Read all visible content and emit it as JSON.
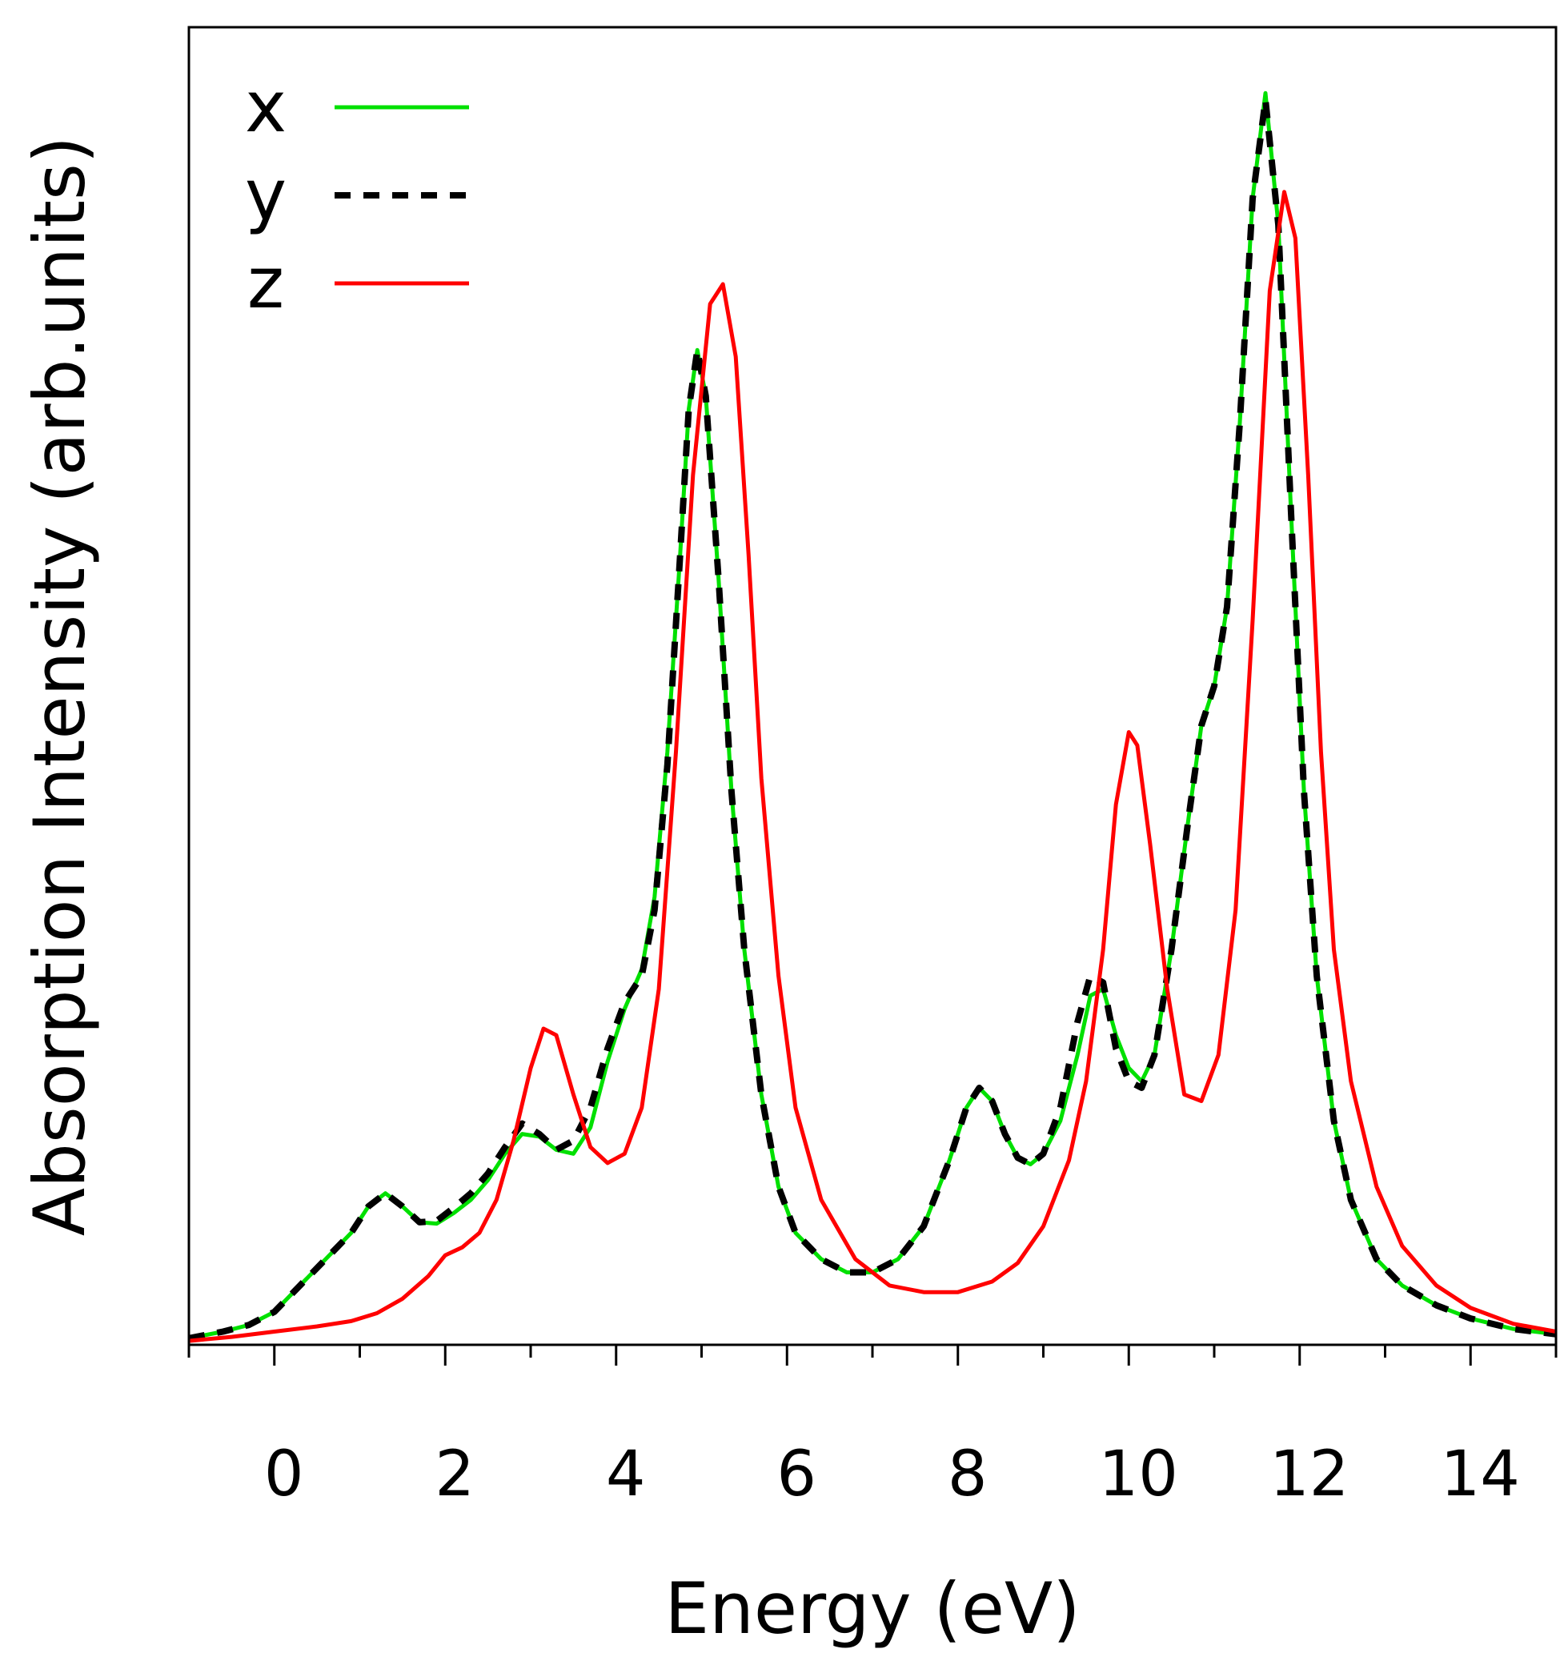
{
  "chart_data": {
    "type": "line",
    "title": "",
    "xlabel": "Energy (eV)",
    "ylabel": "Absorption Intensity (arb.units)",
    "xlim": [
      -1,
      15
    ],
    "ylim": [
      0,
      1.0
    ],
    "x_ticks": [
      0,
      2,
      4,
      6,
      8,
      10,
      12,
      14
    ],
    "x_minor_ticks": [
      -1,
      1,
      3,
      5,
      7,
      9,
      11,
      13,
      15
    ],
    "y_ticks_shown": false,
    "grid": false,
    "legend_position": "top-left",
    "series": [
      {
        "name": "x",
        "color": "#00e000",
        "style": "solid",
        "points": [
          [
            -1,
            0.005
          ],
          [
            -0.6,
            0.01
          ],
          [
            -0.3,
            0.015
          ],
          [
            0,
            0.025
          ],
          [
            0.3,
            0.045
          ],
          [
            0.6,
            0.065
          ],
          [
            0.9,
            0.085
          ],
          [
            1.1,
            0.105
          ],
          [
            1.3,
            0.115
          ],
          [
            1.5,
            0.105
          ],
          [
            1.7,
            0.093
          ],
          [
            1.9,
            0.092
          ],
          [
            2.1,
            0.1
          ],
          [
            2.3,
            0.11
          ],
          [
            2.5,
            0.125
          ],
          [
            2.7,
            0.145
          ],
          [
            2.9,
            0.16
          ],
          [
            3.1,
            0.158
          ],
          [
            3.3,
            0.148
          ],
          [
            3.5,
            0.145
          ],
          [
            3.7,
            0.165
          ],
          [
            3.9,
            0.215
          ],
          [
            4.1,
            0.255
          ],
          [
            4.3,
            0.285
          ],
          [
            4.45,
            0.34
          ],
          [
            4.6,
            0.45
          ],
          [
            4.75,
            0.6
          ],
          [
            4.85,
            0.71
          ],
          [
            4.95,
            0.755
          ],
          [
            5.05,
            0.72
          ],
          [
            5.2,
            0.58
          ],
          [
            5.35,
            0.42
          ],
          [
            5.5,
            0.3
          ],
          [
            5.7,
            0.19
          ],
          [
            5.9,
            0.12
          ],
          [
            6.1,
            0.085
          ],
          [
            6.4,
            0.065
          ],
          [
            6.7,
            0.055
          ],
          [
            7.0,
            0.055
          ],
          [
            7.3,
            0.065
          ],
          [
            7.6,
            0.09
          ],
          [
            7.9,
            0.14
          ],
          [
            8.1,
            0.18
          ],
          [
            8.25,
            0.195
          ],
          [
            8.4,
            0.185
          ],
          [
            8.55,
            0.16
          ],
          [
            8.7,
            0.142
          ],
          [
            8.85,
            0.137
          ],
          [
            9.0,
            0.145
          ],
          [
            9.2,
            0.17
          ],
          [
            9.4,
            0.22
          ],
          [
            9.55,
            0.265
          ],
          [
            9.7,
            0.27
          ],
          [
            9.85,
            0.235
          ],
          [
            10.0,
            0.21
          ],
          [
            10.15,
            0.2
          ],
          [
            10.3,
            0.22
          ],
          [
            10.5,
            0.3
          ],
          [
            10.7,
            0.4
          ],
          [
            10.85,
            0.47
          ],
          [
            11.0,
            0.5
          ],
          [
            11.15,
            0.56
          ],
          [
            11.3,
            0.7
          ],
          [
            11.45,
            0.87
          ],
          [
            11.6,
            0.95
          ],
          [
            11.75,
            0.85
          ],
          [
            11.9,
            0.63
          ],
          [
            12.05,
            0.42
          ],
          [
            12.2,
            0.28
          ],
          [
            12.4,
            0.17
          ],
          [
            12.6,
            0.11
          ],
          [
            12.9,
            0.065
          ],
          [
            13.2,
            0.045
          ],
          [
            13.6,
            0.03
          ],
          [
            14.0,
            0.02
          ],
          [
            14.5,
            0.012
          ],
          [
            15.0,
            0.008
          ]
        ]
      },
      {
        "name": "y",
        "color": "#000000",
        "style": "dashed",
        "points": [
          [
            -1,
            0.005
          ],
          [
            -0.6,
            0.01
          ],
          [
            -0.3,
            0.015
          ],
          [
            0,
            0.025
          ],
          [
            0.3,
            0.045
          ],
          [
            0.6,
            0.065
          ],
          [
            0.9,
            0.085
          ],
          [
            1.1,
            0.105
          ],
          [
            1.3,
            0.115
          ],
          [
            1.5,
            0.105
          ],
          [
            1.7,
            0.093
          ],
          [
            1.9,
            0.094
          ],
          [
            2.1,
            0.104
          ],
          [
            2.3,
            0.115
          ],
          [
            2.5,
            0.13
          ],
          [
            2.7,
            0.15
          ],
          [
            2.9,
            0.168
          ],
          [
            3.1,
            0.16
          ],
          [
            3.3,
            0.148
          ],
          [
            3.5,
            0.155
          ],
          [
            3.7,
            0.18
          ],
          [
            3.9,
            0.225
          ],
          [
            4.1,
            0.26
          ],
          [
            4.3,
            0.28
          ],
          [
            4.45,
            0.33
          ],
          [
            4.6,
            0.44
          ],
          [
            4.75,
            0.6
          ],
          [
            4.85,
            0.71
          ],
          [
            4.95,
            0.755
          ],
          [
            5.05,
            0.72
          ],
          [
            5.2,
            0.58
          ],
          [
            5.35,
            0.42
          ],
          [
            5.5,
            0.3
          ],
          [
            5.7,
            0.19
          ],
          [
            5.9,
            0.12
          ],
          [
            6.1,
            0.085
          ],
          [
            6.4,
            0.065
          ],
          [
            6.7,
            0.055
          ],
          [
            7.0,
            0.055
          ],
          [
            7.3,
            0.065
          ],
          [
            7.6,
            0.09
          ],
          [
            7.9,
            0.14
          ],
          [
            8.1,
            0.18
          ],
          [
            8.25,
            0.195
          ],
          [
            8.4,
            0.185
          ],
          [
            8.55,
            0.16
          ],
          [
            8.7,
            0.142
          ],
          [
            8.85,
            0.137
          ],
          [
            9.0,
            0.145
          ],
          [
            9.2,
            0.18
          ],
          [
            9.4,
            0.245
          ],
          [
            9.55,
            0.28
          ],
          [
            9.7,
            0.275
          ],
          [
            9.85,
            0.225
          ],
          [
            10.0,
            0.2
          ],
          [
            10.15,
            0.195
          ],
          [
            10.3,
            0.22
          ],
          [
            10.5,
            0.3
          ],
          [
            10.7,
            0.4
          ],
          [
            10.85,
            0.47
          ],
          [
            11.0,
            0.5
          ],
          [
            11.15,
            0.56
          ],
          [
            11.3,
            0.7
          ],
          [
            11.45,
            0.87
          ],
          [
            11.6,
            0.945
          ],
          [
            11.75,
            0.85
          ],
          [
            11.9,
            0.63
          ],
          [
            12.05,
            0.42
          ],
          [
            12.2,
            0.28
          ],
          [
            12.4,
            0.17
          ],
          [
            12.6,
            0.11
          ],
          [
            12.9,
            0.065
          ],
          [
            13.2,
            0.045
          ],
          [
            13.6,
            0.03
          ],
          [
            14.0,
            0.02
          ],
          [
            14.5,
            0.012
          ],
          [
            15.0,
            0.008
          ]
        ]
      },
      {
        "name": "z",
        "color": "#ff0000",
        "style": "solid",
        "points": [
          [
            -1,
            0.003
          ],
          [
            -0.5,
            0.006
          ],
          [
            0,
            0.01
          ],
          [
            0.5,
            0.014
          ],
          [
            0.9,
            0.018
          ],
          [
            1.2,
            0.024
          ],
          [
            1.5,
            0.035
          ],
          [
            1.8,
            0.052
          ],
          [
            2.0,
            0.068
          ],
          [
            2.2,
            0.074
          ],
          [
            2.4,
            0.085
          ],
          [
            2.6,
            0.11
          ],
          [
            2.8,
            0.155
          ],
          [
            3.0,
            0.21
          ],
          [
            3.15,
            0.24
          ],
          [
            3.3,
            0.235
          ],
          [
            3.5,
            0.19
          ],
          [
            3.7,
            0.15
          ],
          [
            3.9,
            0.138
          ],
          [
            4.1,
            0.145
          ],
          [
            4.3,
            0.18
          ],
          [
            4.5,
            0.27
          ],
          [
            4.7,
            0.45
          ],
          [
            4.9,
            0.66
          ],
          [
            5.1,
            0.79
          ],
          [
            5.25,
            0.805
          ],
          [
            5.4,
            0.75
          ],
          [
            5.55,
            0.6
          ],
          [
            5.7,
            0.43
          ],
          [
            5.9,
            0.28
          ],
          [
            6.1,
            0.18
          ],
          [
            6.4,
            0.11
          ],
          [
            6.8,
            0.065
          ],
          [
            7.2,
            0.045
          ],
          [
            7.6,
            0.04
          ],
          [
            8.0,
            0.04
          ],
          [
            8.4,
            0.048
          ],
          [
            8.7,
            0.062
          ],
          [
            9.0,
            0.09
          ],
          [
            9.3,
            0.14
          ],
          [
            9.5,
            0.2
          ],
          [
            9.7,
            0.3
          ],
          [
            9.85,
            0.41
          ],
          [
            10.0,
            0.465
          ],
          [
            10.1,
            0.455
          ],
          [
            10.25,
            0.38
          ],
          [
            10.45,
            0.27
          ],
          [
            10.65,
            0.19
          ],
          [
            10.85,
            0.185
          ],
          [
            11.05,
            0.22
          ],
          [
            11.25,
            0.33
          ],
          [
            11.45,
            0.55
          ],
          [
            11.65,
            0.8
          ],
          [
            11.82,
            0.875
          ],
          [
            11.95,
            0.84
          ],
          [
            12.1,
            0.66
          ],
          [
            12.25,
            0.45
          ],
          [
            12.4,
            0.3
          ],
          [
            12.6,
            0.2
          ],
          [
            12.9,
            0.12
          ],
          [
            13.2,
            0.075
          ],
          [
            13.6,
            0.045
          ],
          [
            14.0,
            0.028
          ],
          [
            14.5,
            0.016
          ],
          [
            15.0,
            0.01
          ]
        ]
      }
    ]
  }
}
